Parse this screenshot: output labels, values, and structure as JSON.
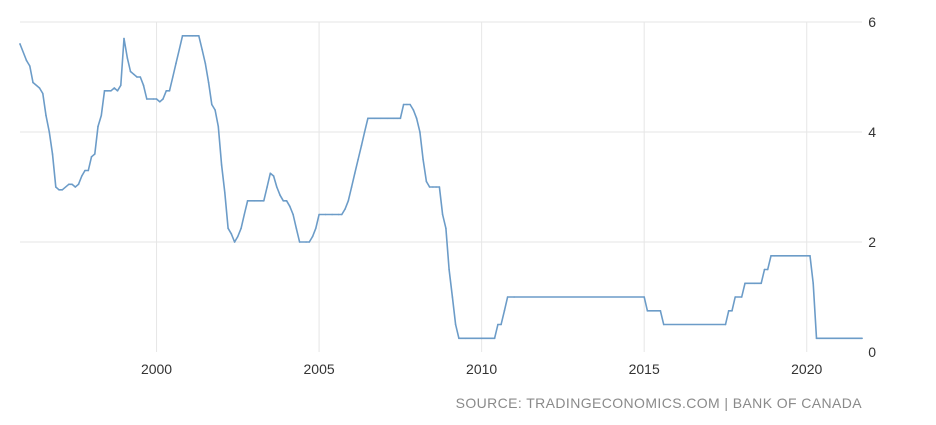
{
  "chart_data": {
    "type": "line",
    "title": "",
    "xlabel": "",
    "ylabel": "",
    "xlim": [
      1995.8,
      2021.7
    ],
    "ylim": [
      0,
      6
    ],
    "x_ticks": [
      2000,
      2005,
      2010,
      2015,
      2020
    ],
    "y_ticks": [
      0,
      2,
      4,
      6
    ],
    "y_axis_position": "right",
    "grid": true,
    "legend": "none",
    "colors": {
      "line": "#6c9cc8",
      "grid": "#e6e6e6",
      "axis_text": "#333333",
      "source_text": "#8a8a8a"
    },
    "series": [
      {
        "values": [
          [
            1995.8,
            5.6
          ],
          [
            1996.0,
            5.3
          ],
          [
            1996.1,
            5.2
          ],
          [
            1996.2,
            4.9
          ],
          [
            1996.4,
            4.8
          ],
          [
            1996.5,
            4.7
          ],
          [
            1996.6,
            4.3
          ],
          [
            1996.7,
            4.0
          ],
          [
            1996.8,
            3.6
          ],
          [
            1996.9,
            3.0
          ],
          [
            1997.0,
            2.95
          ],
          [
            1997.1,
            2.95
          ],
          [
            1997.3,
            3.05
          ],
          [
            1997.4,
            3.05
          ],
          [
            1997.5,
            3.0
          ],
          [
            1997.6,
            3.05
          ],
          [
            1997.7,
            3.2
          ],
          [
            1997.8,
            3.3
          ],
          [
            1997.9,
            3.3
          ],
          [
            1998.0,
            3.55
          ],
          [
            1998.1,
            3.6
          ],
          [
            1998.2,
            4.1
          ],
          [
            1998.3,
            4.3
          ],
          [
            1998.4,
            4.75
          ],
          [
            1998.5,
            4.75
          ],
          [
            1998.6,
            4.75
          ],
          [
            1998.7,
            4.8
          ],
          [
            1998.8,
            4.75
          ],
          [
            1998.9,
            4.85
          ],
          [
            1999.0,
            5.7
          ],
          [
            1999.1,
            5.35
          ],
          [
            1999.2,
            5.1
          ],
          [
            1999.3,
            5.05
          ],
          [
            1999.4,
            5.0
          ],
          [
            1999.5,
            5.0
          ],
          [
            1999.6,
            4.85
          ],
          [
            1999.7,
            4.6
          ],
          [
            1999.9,
            4.6
          ],
          [
            2000.0,
            4.6
          ],
          [
            2000.1,
            4.55
          ],
          [
            2000.2,
            4.6
          ],
          [
            2000.3,
            4.75
          ],
          [
            2000.4,
            4.75
          ],
          [
            2000.5,
            5.0
          ],
          [
            2000.6,
            5.25
          ],
          [
            2000.7,
            5.5
          ],
          [
            2000.8,
            5.75
          ],
          [
            2000.9,
            5.75
          ],
          [
            2001.0,
            5.75
          ],
          [
            2001.1,
            5.75
          ],
          [
            2001.2,
            5.75
          ],
          [
            2001.3,
            5.75
          ],
          [
            2001.4,
            5.5
          ],
          [
            2001.5,
            5.25
          ],
          [
            2001.6,
            4.9
          ],
          [
            2001.7,
            4.5
          ],
          [
            2001.8,
            4.4
          ],
          [
            2001.9,
            4.1
          ],
          [
            2002.0,
            3.4
          ],
          [
            2002.1,
            2.9
          ],
          [
            2002.2,
            2.25
          ],
          [
            2002.3,
            2.15
          ],
          [
            2002.4,
            2.0
          ],
          [
            2002.5,
            2.1
          ],
          [
            2002.6,
            2.25
          ],
          [
            2002.7,
            2.5
          ],
          [
            2002.8,
            2.75
          ],
          [
            2003.0,
            2.75
          ],
          [
            2003.2,
            2.75
          ],
          [
            2003.3,
            2.75
          ],
          [
            2003.4,
            3.0
          ],
          [
            2003.5,
            3.25
          ],
          [
            2003.6,
            3.2
          ],
          [
            2003.7,
            3.0
          ],
          [
            2003.8,
            2.85
          ],
          [
            2003.9,
            2.75
          ],
          [
            2004.0,
            2.75
          ],
          [
            2004.1,
            2.65
          ],
          [
            2004.2,
            2.5
          ],
          [
            2004.3,
            2.25
          ],
          [
            2004.4,
            2.0
          ],
          [
            2004.6,
            2.0
          ],
          [
            2004.7,
            2.0
          ],
          [
            2004.8,
            2.1
          ],
          [
            2004.9,
            2.25
          ],
          [
            2005.0,
            2.5
          ],
          [
            2005.2,
            2.5
          ],
          [
            2005.4,
            2.5
          ],
          [
            2005.6,
            2.5
          ],
          [
            2005.7,
            2.5
          ],
          [
            2005.8,
            2.6
          ],
          [
            2005.9,
            2.75
          ],
          [
            2006.0,
            3.0
          ],
          [
            2006.1,
            3.25
          ],
          [
            2006.2,
            3.5
          ],
          [
            2006.3,
            3.75
          ],
          [
            2006.4,
            4.0
          ],
          [
            2006.5,
            4.25
          ],
          [
            2006.7,
            4.25
          ],
          [
            2006.9,
            4.25
          ],
          [
            2007.1,
            4.25
          ],
          [
            2007.3,
            4.25
          ],
          [
            2007.4,
            4.25
          ],
          [
            2007.5,
            4.25
          ],
          [
            2007.6,
            4.5
          ],
          [
            2007.7,
            4.5
          ],
          [
            2007.8,
            4.5
          ],
          [
            2007.9,
            4.4
          ],
          [
            2008.0,
            4.25
          ],
          [
            2008.1,
            4.0
          ],
          [
            2008.2,
            3.5
          ],
          [
            2008.3,
            3.1
          ],
          [
            2008.4,
            3.0
          ],
          [
            2008.5,
            3.0
          ],
          [
            2008.6,
            3.0
          ],
          [
            2008.7,
            3.0
          ],
          [
            2008.8,
            2.5
          ],
          [
            2008.9,
            2.25
          ],
          [
            2009.0,
            1.5
          ],
          [
            2009.1,
            1.0
          ],
          [
            2009.2,
            0.5
          ],
          [
            2009.3,
            0.25
          ],
          [
            2009.5,
            0.25
          ],
          [
            2010.0,
            0.25
          ],
          [
            2010.4,
            0.25
          ],
          [
            2010.5,
            0.5
          ],
          [
            2010.6,
            0.5
          ],
          [
            2010.7,
            0.75
          ],
          [
            2010.8,
            1.0
          ],
          [
            2011.0,
            1.0
          ],
          [
            2015.0,
            1.0
          ],
          [
            2015.1,
            0.75
          ],
          [
            2015.5,
            0.75
          ],
          [
            2015.6,
            0.5
          ],
          [
            2017.5,
            0.5
          ],
          [
            2017.6,
            0.75
          ],
          [
            2017.7,
            0.75
          ],
          [
            2017.8,
            1.0
          ],
          [
            2018.0,
            1.0
          ],
          [
            2018.1,
            1.25
          ],
          [
            2018.4,
            1.25
          ],
          [
            2018.6,
            1.25
          ],
          [
            2018.7,
            1.5
          ],
          [
            2018.8,
            1.5
          ],
          [
            2018.9,
            1.75
          ],
          [
            2019.0,
            1.75
          ],
          [
            2020.1,
            1.75
          ],
          [
            2020.2,
            1.25
          ],
          [
            2020.3,
            0.25
          ],
          [
            2020.4,
            0.25
          ],
          [
            2021.7,
            0.25
          ]
        ]
      }
    ]
  },
  "source": "SOURCE: TRADINGECONOMICS.COM | BANK OF CANADA"
}
